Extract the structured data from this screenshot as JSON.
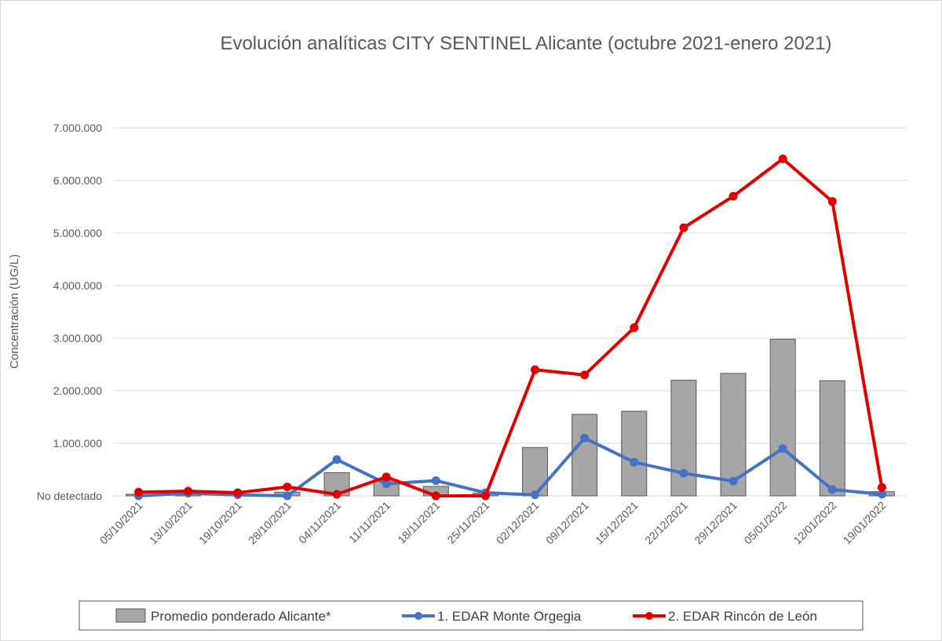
{
  "chart_data": {
    "type": "bar",
    "title": "Evolución analíticas CITY SENTINEL Alicante (octubre 2021-enero 2021)",
    "xlabel": "",
    "ylabel": "Concentración (UG/L)",
    "ylim": [
      0,
      7000000
    ],
    "y_ticks": [
      {
        "value": 0,
        "label": "No detectado"
      },
      {
        "value": 1000000,
        "label": "1.000.000"
      },
      {
        "value": 2000000,
        "label": "2.000.000"
      },
      {
        "value": 3000000,
        "label": "3.000.000"
      },
      {
        "value": 4000000,
        "label": "4.000.000"
      },
      {
        "value": 5000000,
        "label": "5.000.000"
      },
      {
        "value": 6000000,
        "label": "6.000.000"
      },
      {
        "value": 7000000,
        "label": "7.000.000"
      }
    ],
    "grid": true,
    "legend_position": "bottom",
    "categories": [
      "05/10/2021",
      "13/10/2021",
      "19/10/2021",
      "28/10/2021",
      "04/11/2021",
      "11/11/2021",
      "18/11/2021",
      "25/11/2021",
      "02/12/2021",
      "09/12/2021",
      "15/12/2021",
      "22/12/2021",
      "29/12/2021",
      "05/01/2022",
      "12/01/2022",
      "19/01/2022"
    ],
    "series": [
      {
        "name": "Promedio ponderado Alicante*",
        "type": "bar",
        "color": "#a6a6a6",
        "values": [
          30000,
          50000,
          30000,
          70000,
          440000,
          300000,
          180000,
          50000,
          920000,
          1550000,
          1610000,
          2200000,
          2330000,
          2980000,
          2190000,
          80000
        ]
      },
      {
        "name": "1. EDAR Monte Orgegia",
        "type": "line",
        "color": "#4472c4",
        "values": [
          0,
          50000,
          20000,
          0,
          690000,
          230000,
          290000,
          60000,
          20000,
          1100000,
          640000,
          430000,
          280000,
          900000,
          120000,
          30000
        ]
      },
      {
        "name": "2. EDAR Rincón de León",
        "type": "line",
        "color": "#e00000",
        "values": [
          70000,
          90000,
          60000,
          170000,
          30000,
          360000,
          0,
          0,
          2400000,
          2300000,
          3200000,
          5100000,
          5700000,
          6410000,
          5600000,
          160000
        ]
      }
    ]
  }
}
